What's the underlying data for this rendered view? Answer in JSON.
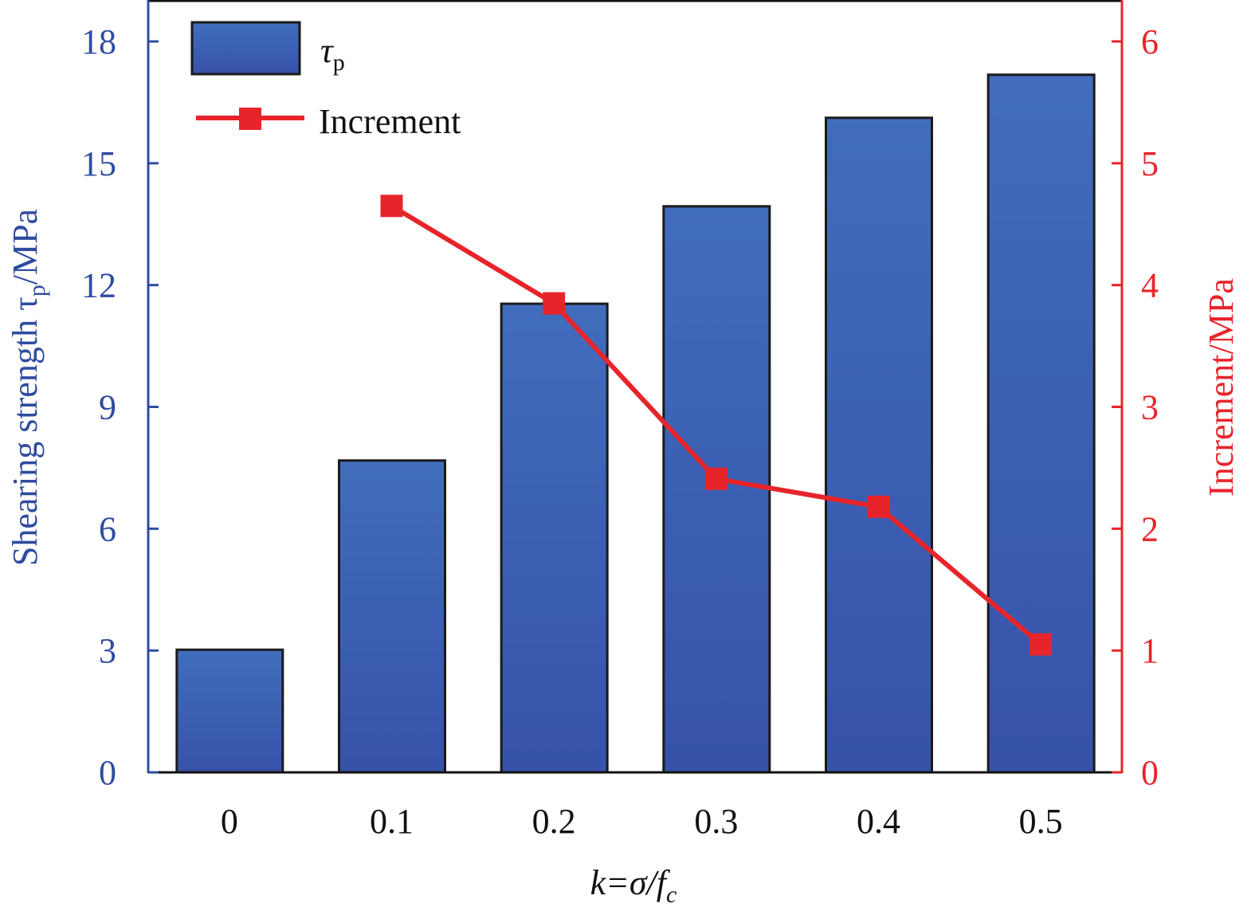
{
  "chart_data": {
    "type": "bar",
    "categories": [
      "0",
      "0.1",
      "0.2",
      "0.3",
      "0.4",
      "0.5"
    ],
    "series": [
      {
        "name": "τp",
        "name_main": "τ",
        "name_sub": "p",
        "type": "bar",
        "axis": "left",
        "values": [
          3.02,
          7.68,
          11.54,
          13.94,
          16.12,
          17.18
        ],
        "color": "#3d62b8"
      },
      {
        "name": "Increment",
        "type": "line",
        "axis": "right",
        "marker": "square",
        "values": [
          null,
          4.65,
          3.85,
          2.41,
          2.18,
          1.05
        ],
        "color": "#e8242b"
      }
    ],
    "xlabel": {
      "main": "k=σ/f",
      "sub": "c"
    },
    "ylabel": {
      "main": "Shearing strength τ",
      "sub": "p",
      "suffix": "/MPa"
    },
    "y2label": "Increment/MPa",
    "ylim": [
      0,
      19
    ],
    "y2lim": [
      0,
      6.333
    ],
    "yticks": [
      "0",
      "3",
      "6",
      "9",
      "12",
      "15",
      "18"
    ],
    "y2ticks": [
      "0",
      "1",
      "2",
      "3",
      "4",
      "5",
      "6"
    ],
    "legend": "top-left",
    "grid": false,
    "left_axis_color": "#2f4c9f",
    "right_axis_color": "#e8242b"
  }
}
